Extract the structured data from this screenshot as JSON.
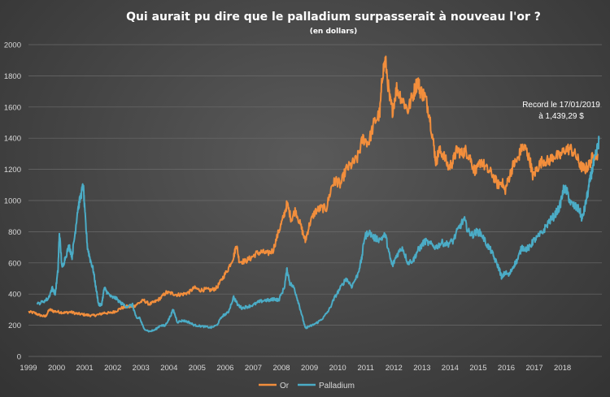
{
  "chart_data": {
    "type": "line",
    "title": "Qui aurait pu dire que le palladium surpasserait à nouveau l'or ?",
    "subtitle": "(en dollars)",
    "xlabel": "",
    "ylabel": "",
    "xlim": [
      1999,
      2019.4
    ],
    "ylim": [
      0,
      2000
    ],
    "x_ticks": [
      "1999",
      "2000",
      "2001",
      "2002",
      "2003",
      "2004",
      "2005",
      "2006",
      "2007",
      "2008",
      "2009",
      "2010",
      "2011",
      "2012",
      "2013",
      "2014",
      "2015",
      "2016",
      "2017",
      "2018"
    ],
    "y_ticks": [
      "0",
      "200",
      "400",
      "600",
      "800",
      "1000",
      "1200",
      "1400",
      "1600",
      "1800",
      "2000"
    ],
    "grid": true,
    "legend": "bottom-center",
    "annotation": {
      "line1": "Record le 17/01/2019",
      "line2": "à 1,439,29 $",
      "x": 2019.05,
      "y": 1390
    },
    "series": [
      {
        "name": "Or",
        "color": "#f28e3c",
        "points": [
          [
            1999.0,
            285
          ],
          [
            1999.2,
            280
          ],
          [
            1999.4,
            265
          ],
          [
            1999.6,
            255
          ],
          [
            1999.75,
            300
          ],
          [
            1999.9,
            290
          ],
          [
            2000.1,
            285
          ],
          [
            2000.3,
            280
          ],
          [
            2000.5,
            285
          ],
          [
            2000.7,
            275
          ],
          [
            2000.9,
            270
          ],
          [
            2001.1,
            265
          ],
          [
            2001.3,
            262
          ],
          [
            2001.5,
            268
          ],
          [
            2001.7,
            280
          ],
          [
            2001.9,
            278
          ],
          [
            2002.1,
            290
          ],
          [
            2002.3,
            310
          ],
          [
            2002.5,
            320
          ],
          [
            2002.7,
            315
          ],
          [
            2002.9,
            340
          ],
          [
            2003.1,
            360
          ],
          [
            2003.3,
            335
          ],
          [
            2003.5,
            350
          ],
          [
            2003.7,
            375
          ],
          [
            2003.9,
            410
          ],
          [
            2004.1,
            405
          ],
          [
            2004.3,
            395
          ],
          [
            2004.5,
            400
          ],
          [
            2004.7,
            410
          ],
          [
            2004.9,
            440
          ],
          [
            2005.1,
            425
          ],
          [
            2005.3,
            430
          ],
          [
            2005.5,
            425
          ],
          [
            2005.7,
            440
          ],
          [
            2005.9,
            500
          ],
          [
            2006.1,
            560
          ],
          [
            2006.3,
            640
          ],
          [
            2006.4,
            720
          ],
          [
            2006.5,
            610
          ],
          [
            2006.7,
            610
          ],
          [
            2006.9,
            630
          ],
          [
            2007.1,
            660
          ],
          [
            2007.3,
            670
          ],
          [
            2007.5,
            660
          ],
          [
            2007.7,
            680
          ],
          [
            2007.9,
            800
          ],
          [
            2008.05,
            880
          ],
          [
            2008.2,
            980
          ],
          [
            2008.35,
            880
          ],
          [
            2008.5,
            940
          ],
          [
            2008.7,
            830
          ],
          [
            2008.85,
            740
          ],
          [
            2009.0,
            850
          ],
          [
            2009.2,
            930
          ],
          [
            2009.4,
            950
          ],
          [
            2009.6,
            950
          ],
          [
            2009.8,
            1100
          ],
          [
            2009.95,
            1130
          ],
          [
            2010.1,
            1100
          ],
          [
            2010.3,
            1200
          ],
          [
            2010.5,
            1230
          ],
          [
            2010.7,
            1270
          ],
          [
            2010.9,
            1400
          ],
          [
            2011.1,
            1370
          ],
          [
            2011.3,
            1500
          ],
          [
            2011.5,
            1560
          ],
          [
            2011.6,
            1820
          ],
          [
            2011.7,
            1900
          ],
          [
            2011.85,
            1650
          ],
          [
            2011.95,
            1580
          ],
          [
            2012.1,
            1720
          ],
          [
            2012.3,
            1650
          ],
          [
            2012.5,
            1580
          ],
          [
            2012.7,
            1690
          ],
          [
            2012.85,
            1770
          ],
          [
            2012.95,
            1700
          ],
          [
            2013.1,
            1670
          ],
          [
            2013.25,
            1570
          ],
          [
            2013.4,
            1380
          ],
          [
            2013.5,
            1240
          ],
          [
            2013.6,
            1320
          ],
          [
            2013.75,
            1300
          ],
          [
            2013.95,
            1210
          ],
          [
            2014.1,
            1250
          ],
          [
            2014.25,
            1330
          ],
          [
            2014.4,
            1300
          ],
          [
            2014.55,
            1320
          ],
          [
            2014.7,
            1280
          ],
          [
            2014.85,
            1200
          ],
          [
            2014.95,
            1190
          ],
          [
            2015.1,
            1260
          ],
          [
            2015.3,
            1200
          ],
          [
            2015.5,
            1170
          ],
          [
            2015.7,
            1100
          ],
          [
            2015.85,
            1120
          ],
          [
            2015.95,
            1060
          ],
          [
            2016.1,
            1150
          ],
          [
            2016.25,
            1230
          ],
          [
            2016.4,
            1260
          ],
          [
            2016.55,
            1340
          ],
          [
            2016.7,
            1330
          ],
          [
            2016.85,
            1250
          ],
          [
            2016.95,
            1150
          ],
          [
            2017.1,
            1210
          ],
          [
            2017.3,
            1260
          ],
          [
            2017.5,
            1250
          ],
          [
            2017.7,
            1290
          ],
          [
            2017.9,
            1280
          ],
          [
            2018.1,
            1330
          ],
          [
            2018.3,
            1330
          ],
          [
            2018.5,
            1280
          ],
          [
            2018.65,
            1220
          ],
          [
            2018.8,
            1200
          ],
          [
            2018.95,
            1230
          ],
          [
            2019.1,
            1290
          ],
          [
            2019.25,
            1300
          ]
        ]
      },
      {
        "name": "Palladium",
        "color": "#4bacc6",
        "points": [
          [
            1999.3,
            335
          ],
          [
            1999.5,
            350
          ],
          [
            1999.7,
            370
          ],
          [
            1999.85,
            440
          ],
          [
            1999.95,
            400
          ],
          [
            2000.05,
            550
          ],
          [
            2000.1,
            790
          ],
          [
            2000.2,
            560
          ],
          [
            2000.3,
            630
          ],
          [
            2000.45,
            710
          ],
          [
            2000.55,
            640
          ],
          [
            2000.65,
            780
          ],
          [
            2000.75,
            940
          ],
          [
            2000.85,
            1020
          ],
          [
            2000.95,
            1100
          ],
          [
            2001.0,
            940
          ],
          [
            2001.1,
            700
          ],
          [
            2001.2,
            620
          ],
          [
            2001.3,
            560
          ],
          [
            2001.4,
            440
          ],
          [
            2001.5,
            330
          ],
          [
            2001.6,
            330
          ],
          [
            2001.7,
            440
          ],
          [
            2001.8,
            410
          ],
          [
            2001.95,
            380
          ],
          [
            2002.1,
            375
          ],
          [
            2002.3,
            340
          ],
          [
            2002.5,
            320
          ],
          [
            2002.7,
            330
          ],
          [
            2002.85,
            240
          ],
          [
            2002.95,
            250
          ],
          [
            2003.1,
            180
          ],
          [
            2003.3,
            160
          ],
          [
            2003.5,
            170
          ],
          [
            2003.7,
            200
          ],
          [
            2003.85,
            195
          ],
          [
            2004.0,
            240
          ],
          [
            2004.15,
            300
          ],
          [
            2004.3,
            220
          ],
          [
            2004.5,
            230
          ],
          [
            2004.7,
            220
          ],
          [
            2004.9,
            200
          ],
          [
            2005.1,
            195
          ],
          [
            2005.3,
            190
          ],
          [
            2005.5,
            185
          ],
          [
            2005.7,
            200
          ],
          [
            2005.9,
            260
          ],
          [
            2006.1,
            280
          ],
          [
            2006.3,
            380
          ],
          [
            2006.45,
            330
          ],
          [
            2006.6,
            310
          ],
          [
            2006.8,
            320
          ],
          [
            2007.0,
            330
          ],
          [
            2007.2,
            350
          ],
          [
            2007.4,
            360
          ],
          [
            2007.6,
            360
          ],
          [
            2007.75,
            370
          ],
          [
            2007.9,
            360
          ],
          [
            2008.1,
            440
          ],
          [
            2008.2,
            560
          ],
          [
            2008.3,
            470
          ],
          [
            2008.45,
            440
          ],
          [
            2008.6,
            350
          ],
          [
            2008.75,
            250
          ],
          [
            2008.85,
            180
          ],
          [
            2008.95,
            190
          ],
          [
            2009.1,
            200
          ],
          [
            2009.3,
            220
          ],
          [
            2009.5,
            250
          ],
          [
            2009.7,
            300
          ],
          [
            2009.9,
            380
          ],
          [
            2010.1,
            440
          ],
          [
            2010.3,
            500
          ],
          [
            2010.5,
            450
          ],
          [
            2010.7,
            520
          ],
          [
            2010.85,
            620
          ],
          [
            2010.95,
            760
          ],
          [
            2011.1,
            800
          ],
          [
            2011.3,
            760
          ],
          [
            2011.5,
            750
          ],
          [
            2011.7,
            780
          ],
          [
            2011.85,
            640
          ],
          [
            2011.95,
            580
          ],
          [
            2012.1,
            650
          ],
          [
            2012.3,
            700
          ],
          [
            2012.5,
            600
          ],
          [
            2012.7,
            620
          ],
          [
            2012.85,
            680
          ],
          [
            2012.95,
            700
          ],
          [
            2013.1,
            740
          ],
          [
            2013.3,
            720
          ],
          [
            2013.5,
            700
          ],
          [
            2013.7,
            730
          ],
          [
            2013.9,
            720
          ],
          [
            2014.1,
            740
          ],
          [
            2014.3,
            820
          ],
          [
            2014.5,
            880
          ],
          [
            2014.65,
            800
          ],
          [
            2014.8,
            780
          ],
          [
            2014.95,
            800
          ],
          [
            2015.1,
            790
          ],
          [
            2015.3,
            720
          ],
          [
            2015.45,
            680
          ],
          [
            2015.6,
            620
          ],
          [
            2015.75,
            560
          ],
          [
            2015.85,
            500
          ],
          [
            2015.95,
            540
          ],
          [
            2016.1,
            520
          ],
          [
            2016.25,
            580
          ],
          [
            2016.4,
            620
          ],
          [
            2016.55,
            700
          ],
          [
            2016.7,
            690
          ],
          [
            2016.85,
            700
          ],
          [
            2016.95,
            740
          ],
          [
            2017.1,
            760
          ],
          [
            2017.3,
            800
          ],
          [
            2017.5,
            860
          ],
          [
            2017.7,
            900
          ],
          [
            2017.9,
            960
          ],
          [
            2018.05,
            1080
          ],
          [
            2018.15,
            1060
          ],
          [
            2018.3,
            980
          ],
          [
            2018.45,
            960
          ],
          [
            2018.6,
            940
          ],
          [
            2018.7,
            880
          ],
          [
            2018.8,
            960
          ],
          [
            2018.9,
            1050
          ],
          [
            2019.0,
            1150
          ],
          [
            2019.1,
            1230
          ],
          [
            2019.2,
            1300
          ],
          [
            2019.3,
            1390
          ]
        ]
      }
    ]
  }
}
